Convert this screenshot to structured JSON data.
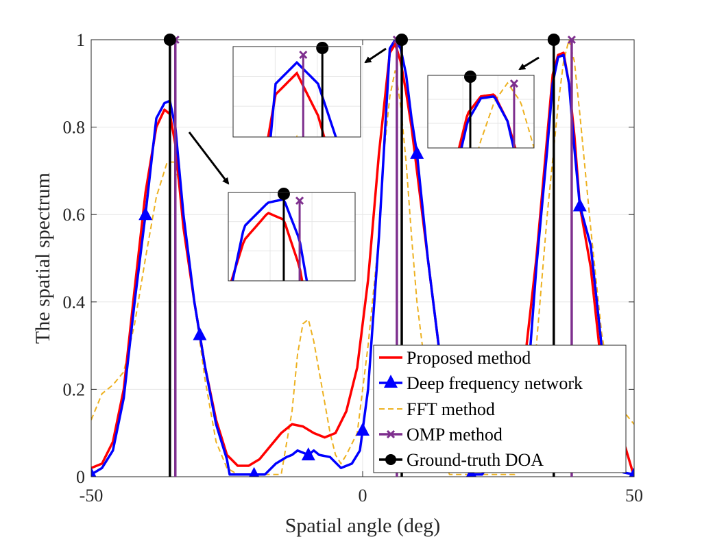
{
  "chart_data": {
    "type": "line",
    "title": "",
    "xlabel": "Spatial angle (deg)",
    "ylabel": "The spatial spectrum",
    "xlim": [
      -50,
      50
    ],
    "ylim": [
      0,
      1
    ],
    "x_ticks": [
      -50,
      0,
      50
    ],
    "x_tick_labels": [
      "-50",
      "0",
      "50"
    ],
    "y_ticks": [
      0,
      0.2,
      0.4,
      0.6,
      0.8,
      1
    ],
    "y_tick_labels": [
      "0",
      "0.2",
      "0.4",
      "0.6",
      "0.8",
      "1"
    ],
    "grid": true,
    "legend_position": "bottom-right",
    "series": [
      {
        "name": "Proposed method",
        "style": "solid",
        "color": "#ff0000",
        "x": [
          -50,
          -48,
          -46,
          -44,
          -42,
          -40,
          -38,
          -36.5,
          -35.5,
          -34.5,
          -33,
          -31,
          -29,
          -27,
          -25,
          -23,
          -21,
          -19,
          -17,
          -15,
          -13,
          -11,
          -9,
          -7,
          -5,
          -3,
          -1,
          1,
          3,
          5,
          6,
          7,
          8,
          9,
          10,
          12,
          14,
          20,
          30,
          32,
          34,
          35,
          36,
          37,
          38,
          39,
          40,
          42,
          44,
          50
        ],
        "y": [
          0.02,
          0.03,
          0.08,
          0.2,
          0.43,
          0.65,
          0.8,
          0.84,
          0.83,
          0.76,
          0.57,
          0.4,
          0.25,
          0.13,
          0.05,
          0.025,
          0.025,
          0.04,
          0.07,
          0.1,
          0.12,
          0.115,
          0.1,
          0.09,
          0.1,
          0.15,
          0.25,
          0.45,
          0.74,
          0.97,
          0.99,
          0.95,
          0.88,
          0.8,
          0.7,
          0.5,
          0.3,
          0.0,
          0.28,
          0.5,
          0.78,
          0.92,
          0.965,
          0.97,
          0.9,
          0.78,
          0.62,
          0.48,
          0.25,
          0.0
        ]
      },
      {
        "name": "Deep frequency network",
        "style": "solid-triangle",
        "color": "#0000ff",
        "x": [
          -50,
          -48,
          -46,
          -44,
          -42,
          -40,
          -38,
          -36.5,
          -35.5,
          -34.5,
          -33,
          -31,
          -29,
          -27,
          -25,
          -24.5,
          -22,
          -20,
          -18,
          -16,
          -14,
          -13,
          -12,
          -11,
          -10,
          -9,
          -8,
          -6,
          -4,
          -2,
          -0.5,
          1,
          3,
          5,
          6,
          7,
          8,
          9,
          10,
          12,
          14,
          16,
          18,
          20,
          22,
          30,
          32,
          34,
          35,
          36,
          37,
          38,
          39,
          40,
          42,
          44,
          46,
          48,
          50
        ],
        "y": [
          0.005,
          0.02,
          0.06,
          0.18,
          0.4,
          0.6,
          0.82,
          0.855,
          0.86,
          0.8,
          0.6,
          0.4,
          0.25,
          0.12,
          0.04,
          0.005,
          0.005,
          0.005,
          0.005,
          0.03,
          0.045,
          0.05,
          0.06,
          0.055,
          0.05,
          0.06,
          0.05,
          0.045,
          0.02,
          0.03,
          0.06,
          0.2,
          0.55,
          0.98,
          1.0,
          0.98,
          0.92,
          0.82,
          0.74,
          0.5,
          0.3,
          0.15,
          0.05,
          0.005,
          0.005,
          0.15,
          0.48,
          0.75,
          0.9,
          0.96,
          0.965,
          0.9,
          0.75,
          0.62,
          0.53,
          0.3,
          0.1,
          0.01,
          0.005
        ]
      },
      {
        "name": "FFT method",
        "style": "dashed",
        "color": "#edb120",
        "x": [
          -50,
          -48,
          -46,
          -44,
          -42,
          -40,
          -38,
          -36,
          -34.5,
          -33,
          -31,
          -29,
          -27,
          -25,
          -23,
          -21,
          -19,
          -17,
          -15,
          -13,
          -12,
          -11,
          -10,
          -9,
          -8,
          -7,
          -6,
          -5,
          -4,
          -3,
          -1,
          1,
          3,
          4,
          5,
          6,
          7,
          8,
          9,
          10,
          12,
          14,
          16,
          18,
          20,
          22,
          24,
          26,
          28,
          30,
          32,
          34,
          36,
          37,
          38,
          39,
          40,
          42,
          44,
          46,
          48,
          50
        ],
        "y": [
          0.13,
          0.19,
          0.21,
          0.24,
          0.35,
          0.5,
          0.64,
          0.72,
          0.72,
          0.6,
          0.4,
          0.22,
          0.08,
          0.02,
          0.005,
          0.005,
          0.005,
          0.005,
          0.005,
          0.15,
          0.28,
          0.35,
          0.36,
          0.31,
          0.24,
          0.17,
          0.1,
          0.05,
          0.03,
          0.05,
          0.1,
          0.3,
          0.55,
          0.75,
          0.87,
          0.93,
          0.85,
          0.72,
          0.55,
          0.4,
          0.2,
          0.08,
          0.005,
          0.005,
          0.005,
          0.005,
          0.005,
          0.005,
          0.005,
          0.05,
          0.3,
          0.6,
          0.85,
          0.95,
          1.0,
          0.95,
          0.83,
          0.57,
          0.33,
          0.18,
          0.15,
          0.12
        ]
      },
      {
        "name": "OMP method",
        "style": "stem-x",
        "color": "#7e2f8e",
        "x": [
          -34.5,
          6.3,
          38.5
        ],
        "y": [
          1,
          1,
          1
        ]
      },
      {
        "name": "Ground-truth DOA",
        "style": "stem-dot",
        "color": "#000000",
        "x": [
          -35.5,
          7.2,
          35.2
        ],
        "y": [
          1,
          1,
          1
        ]
      }
    ],
    "insets": [
      {
        "id": "inset-left-peak",
        "x_range": [
          -39,
          -31
        ],
        "y_range": [
          0.74,
          0.87
        ],
        "points_to": "left peak"
      },
      {
        "id": "inset-center-peak",
        "x_range": [
          3,
          9
        ],
        "y_range": [
          0.93,
          1.015
        ],
        "points_to": "center peak"
      },
      {
        "id": "inset-right-peak",
        "x_range": [
          32,
          40
        ],
        "y_range": [
          0.83,
          1.02
        ],
        "points_to": "right peak"
      }
    ]
  }
}
